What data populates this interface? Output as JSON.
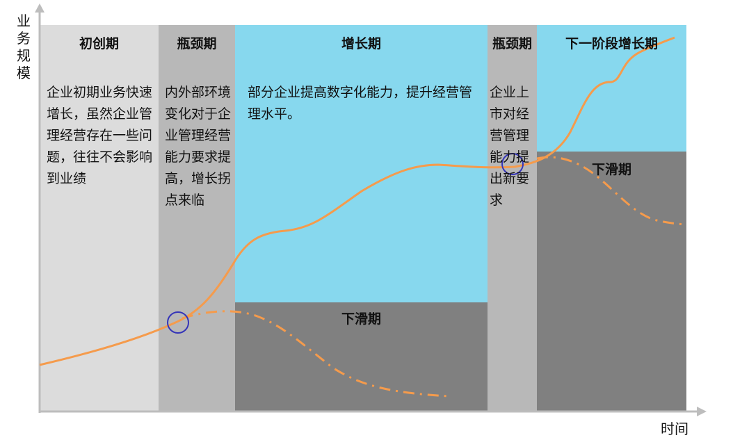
{
  "axes": {
    "y_label": "业务规模",
    "x_label": "时间"
  },
  "phases": [
    {
      "title": "初创期",
      "text": "企业初期业务快速增长，虽然企业管理经营存在一些问题，往往不会影响到业绩",
      "color": "#dcdcdc"
    },
    {
      "title": "瓶颈期",
      "text": "内外部环境变化对于企业管理经营能力要求提高，增长拐点来临",
      "color": "#b8b8b8"
    },
    {
      "title": "增长期",
      "text": "部分企业提高数字化能力，提升经营管理水平。",
      "color": "#87d8ee"
    },
    {
      "title": "瓶颈期",
      "text": "企业上市对经营管理能力提出新要求",
      "color": "#b8b8b8"
    },
    {
      "title": "下一阶段增长期",
      "text": "",
      "color": "#87d8ee"
    }
  ],
  "decline_label": "下滑期",
  "decline_color": "#808080",
  "curve_color": "#f59b4c",
  "marker_color": "#3434b8"
}
